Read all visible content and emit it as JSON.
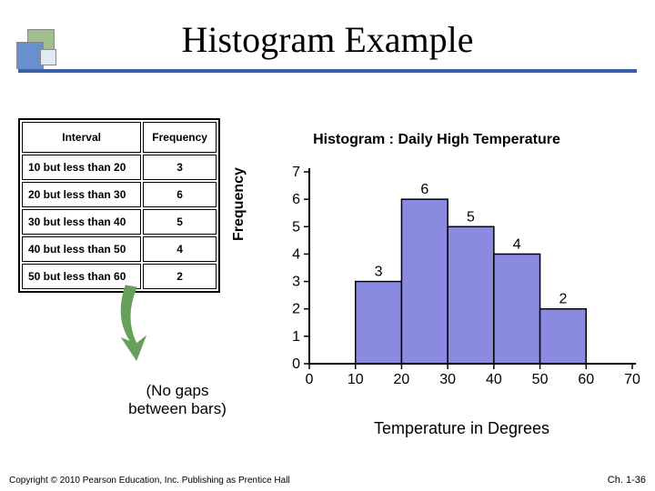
{
  "title": "Histogram Example",
  "table": {
    "headers": [
      "Interval",
      "Frequency"
    ],
    "rows": [
      [
        "10 but less than 20",
        "3"
      ],
      [
        "20 but less than 30",
        "6"
      ],
      [
        "30 but less than 40",
        "5"
      ],
      [
        "40 but less than 50",
        "4"
      ],
      [
        "50 but less than 60",
        "2"
      ]
    ]
  },
  "note": "(No gaps between bars)",
  "chart": {
    "title": "Histogram : Daily High Temperature",
    "ylabel": "Frequency",
    "xlabel": "Temperature in Degrees",
    "ytick_values": [
      0,
      1,
      2,
      3,
      4,
      5,
      6,
      7
    ],
    "xtick_values": [
      0,
      10,
      20,
      30,
      40,
      50,
      60,
      70
    ],
    "ylim": [
      0,
      7
    ],
    "xlim": [
      0,
      70
    ],
    "bar_edges": [
      10,
      20,
      30,
      40,
      50,
      60
    ],
    "frequencies": [
      3,
      6,
      5,
      4,
      2
    ],
    "bar_fill": "#8a8ae0",
    "bar_stroke": "#000000",
    "axis_color": "#000000",
    "tick_length": 6,
    "label_fontsize": 16,
    "value_label_fontsize": 16
  },
  "arrow_color": "#66a05a",
  "footer": "Copyright © 2010 Pearson Education, Inc. Publishing as Prentice Hall",
  "chapter": "Ch. 1-36"
}
